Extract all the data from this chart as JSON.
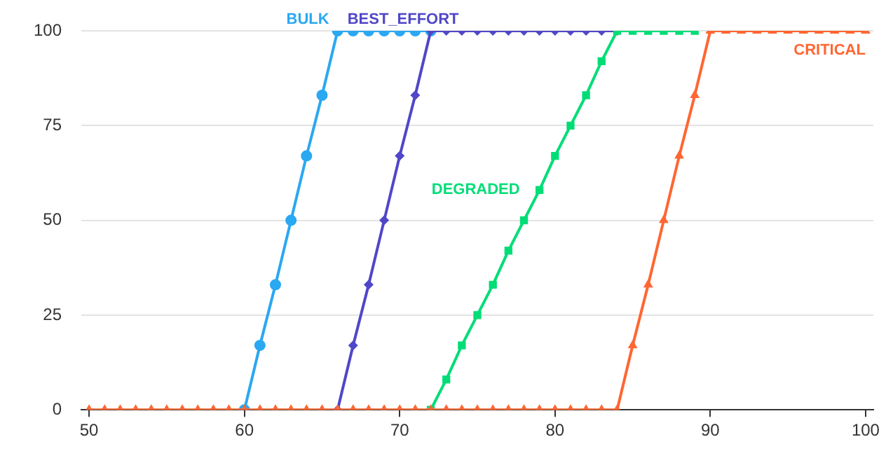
{
  "chart_data": {
    "type": "line",
    "x": [
      50,
      51,
      52,
      53,
      54,
      55,
      56,
      57,
      58,
      59,
      60,
      61,
      62,
      63,
      64,
      65,
      66,
      67,
      68,
      69,
      70,
      71,
      72,
      73,
      74,
      75,
      76,
      77,
      78,
      79,
      80,
      81,
      82,
      83,
      84,
      85,
      86,
      87,
      88,
      89,
      90,
      91,
      92,
      93,
      94,
      95,
      96,
      97,
      98,
      99,
      100
    ],
    "series": [
      {
        "name": "BULK",
        "color": "#2aa8f2",
        "marker": "circle",
        "values": [
          null,
          null,
          null,
          null,
          null,
          null,
          null,
          null,
          null,
          null,
          0,
          17,
          33,
          50,
          67,
          83,
          100,
          100,
          100,
          100,
          100,
          100,
          100,
          null,
          null,
          null,
          null,
          null,
          null,
          null,
          null,
          null,
          null,
          null,
          null,
          null,
          null,
          null,
          null,
          null,
          null,
          null,
          null,
          null,
          null,
          null,
          null,
          null,
          null,
          null,
          null
        ]
      },
      {
        "name": "BEST_EFFORT",
        "color": "#5047c8",
        "marker": "diamond",
        "values": [
          null,
          null,
          null,
          null,
          null,
          null,
          null,
          null,
          null,
          null,
          null,
          null,
          null,
          null,
          null,
          null,
          0,
          17,
          33,
          50,
          67,
          83,
          100,
          100,
          100,
          100,
          100,
          100,
          100,
          100,
          100,
          100,
          100,
          100,
          100,
          null,
          null,
          null,
          null,
          null,
          null,
          null,
          null,
          null,
          null,
          null,
          null,
          null,
          null,
          null,
          null
        ]
      },
      {
        "name": "DEGRADED",
        "color": "#00dd77",
        "marker": "square",
        "values": [
          null,
          null,
          null,
          null,
          null,
          null,
          null,
          null,
          null,
          null,
          null,
          null,
          null,
          null,
          null,
          null,
          null,
          null,
          null,
          null,
          null,
          null,
          0,
          8,
          17,
          25,
          33,
          42,
          50,
          58,
          67,
          75,
          83,
          92,
          100,
          100,
          100,
          100,
          100,
          100,
          null,
          null,
          null,
          null,
          null,
          null,
          null,
          null,
          null,
          null,
          null
        ]
      },
      {
        "name": "CRITICAL",
        "color": "#ff6633",
        "marker": "triangle",
        "values": [
          0,
          0,
          0,
          0,
          0,
          0,
          0,
          0,
          0,
          0,
          0,
          0,
          0,
          0,
          0,
          0,
          0,
          0,
          0,
          0,
          0,
          0,
          0,
          0,
          0,
          0,
          0,
          0,
          0,
          0,
          0,
          0,
          0,
          0,
          0,
          17,
          33,
          50,
          67,
          83,
          100,
          100,
          100,
          100,
          100,
          100,
          100,
          100,
          100,
          100,
          100
        ]
      }
    ],
    "xlim": [
      49.5,
      100.5
    ],
    "xticks": [
      50,
      60,
      70,
      80,
      90,
      100
    ],
    "ylim": [
      0,
      100
    ],
    "yticks": [
      0,
      25,
      50,
      75,
      100
    ],
    "grid": "y",
    "legend": false
  }
}
